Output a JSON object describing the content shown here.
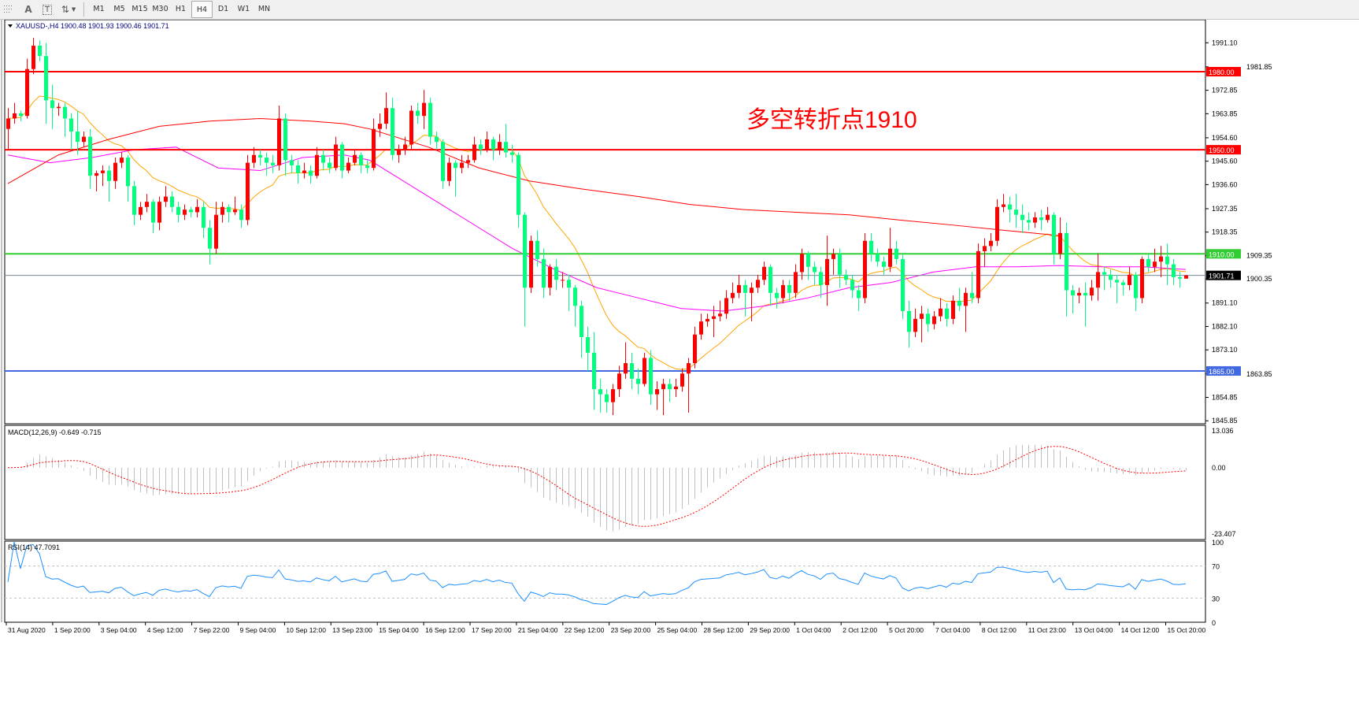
{
  "toolbar": {
    "icons": [
      "grid-icon",
      "text-icon",
      "text-label-icon",
      "arrows-icon"
    ],
    "text_tool": "A",
    "label_tool": "T",
    "timeframes": [
      "M1",
      "M5",
      "M15",
      "M30",
      "H1",
      "H4",
      "D1",
      "W1",
      "MN"
    ],
    "active_timeframe": "H4"
  },
  "main": {
    "header": "XAUUSD-,H4  1900.48 1901.93 1900.46 1901.71",
    "annotation": "多空转折点1910",
    "annotation_color": "#ff0000",
    "price_ticks": [
      "1991.10",
      "1981.85",
      "1972.85",
      "1963.85",
      "1954.60",
      "1945.60",
      "1936.60",
      "1927.35",
      "1918.35",
      "1909.35",
      "1900.35",
      "1891.10",
      "1882.10",
      "1873.10",
      "1863.85",
      "1854.85",
      "1845.85"
    ],
    "levels": [
      {
        "price": 1980.0,
        "label": "1980.00",
        "color": "#ff0000"
      },
      {
        "price": 1950.0,
        "label": "1950.00",
        "color": "#ff0000"
      },
      {
        "price": 1910.0,
        "label": "1910.00",
        "color": "#32cd32"
      },
      {
        "price": 1865.0,
        "label": "1865.00",
        "color": "#4169e1"
      }
    ],
    "current_price": {
      "price": 1901.71,
      "label": "1901.71",
      "color": "#778899"
    }
  },
  "macd": {
    "header": "MACD(12,26,9) -0.649 -0.715",
    "ticks": [
      "13.036",
      "0.00",
      "-23.407"
    ],
    "range": [
      -23.407,
      13.036
    ],
    "histogram_color": "#c0c0c0",
    "signal_color": "#ff0000"
  },
  "rsi": {
    "header": "RSI(14) 47.7091",
    "ticks": [
      "100",
      "70",
      "30",
      "0"
    ],
    "levels": [
      70,
      30
    ],
    "color": "#1e90ff"
  },
  "time_labels": [
    "31 Aug 2020",
    "1 Sep 20:00",
    "3 Sep 04:00",
    "4 Sep 12:00",
    "7 Sep 22:00",
    "9 Sep 04:00",
    "10 Sep 12:00",
    "13 Sep 23:00",
    "15 Sep 04:00",
    "16 Sep 12:00",
    "17 Sep 20:00",
    "21 Sep 04:00",
    "22 Sep 12:00",
    "23 Sep 20:00",
    "25 Sep 04:00",
    "28 Sep 12:00",
    "29 Sep 20:00",
    "1 Oct 04:00",
    "2 Oct 12:00",
    "5 Oct 20:00",
    "7 Oct 04:00",
    "8 Oct 12:00",
    "11 Oct 23:00",
    "13 Oct 04:00",
    "14 Oct 12:00",
    "15 Oct 20:00"
  ],
  "chart_data": {
    "type": "candlestick",
    "symbol": "XAUUSD-",
    "timeframe": "H4",
    "ylim": [
      1845,
      2000
    ],
    "colors": {
      "bull": "#ff0000",
      "bear": "#00ff7f"
    },
    "moving_averages": [
      {
        "color": "#ffa500",
        "computed_from": "close",
        "period": 14
      },
      {
        "color": "#ff00ff",
        "points": [
          [
            0,
            1948
          ],
          [
            10,
            1945
          ],
          [
            20,
            1947
          ],
          [
            30,
            1950
          ],
          [
            40,
            1951
          ],
          [
            50,
            1943
          ],
          [
            60,
            1942
          ],
          [
            70,
            1947
          ],
          [
            80,
            1948
          ],
          [
            86,
            1946
          ],
          [
            100,
            1932
          ],
          [
            110,
            1922
          ],
          [
            120,
            1912
          ],
          [
            130,
            1904
          ],
          [
            140,
            1897
          ],
          [
            150,
            1893
          ],
          [
            160,
            1889
          ],
          [
            170,
            1888
          ],
          [
            180,
            1890
          ],
          [
            190,
            1893
          ],
          [
            200,
            1897
          ],
          [
            210,
            1899
          ],
          [
            220,
            1903
          ],
          [
            230,
            1905
          ],
          [
            240,
            1905
          ],
          [
            250,
            1905.5
          ],
          [
            260,
            1905
          ],
          [
            270,
            1905
          ],
          [
            280,
            1904
          ]
        ]
      },
      {
        "color": "#ff0000",
        "points": [
          [
            0,
            1937
          ],
          [
            12,
            1948
          ],
          [
            24,
            1954
          ],
          [
            36,
            1959
          ],
          [
            48,
            1961
          ],
          [
            60,
            1962
          ],
          [
            72,
            1961
          ],
          [
            80,
            1960
          ],
          [
            86,
            1958
          ],
          [
            100,
            1951
          ],
          [
            112,
            1943
          ],
          [
            124,
            1938
          ],
          [
            136,
            1935
          ],
          [
            150,
            1932
          ],
          [
            162,
            1929
          ],
          [
            175,
            1927
          ],
          [
            187,
            1926
          ],
          [
            200,
            1925
          ],
          [
            212,
            1923
          ],
          [
            225,
            1921
          ],
          [
            237,
            1919
          ],
          [
            250,
            1917
          ]
        ]
      }
    ],
    "ohlc": [
      [
        1958,
        1966,
        1950,
        1962
      ],
      [
        1962,
        1968,
        1960,
        1964
      ],
      [
        1964,
        1965,
        1961,
        1963
      ],
      [
        1963,
        1985,
        1962,
        1981
      ],
      [
        1981,
        1993,
        1979,
        1990
      ],
      [
        1990,
        1992,
        1984,
        1986
      ],
      [
        1986,
        1991,
        1960,
        1969
      ],
      [
        1969,
        1975,
        1958,
        1966
      ],
      [
        1966,
        1968,
        1963,
        1966.5
      ],
      [
        1966.5,
        1968,
        1955,
        1962
      ],
      [
        1962,
        1964,
        1950,
        1957
      ],
      [
        1957,
        1965,
        1948,
        1953
      ],
      [
        1953,
        1957,
        1951,
        1955
      ],
      [
        1955,
        1958,
        1935,
        1940
      ],
      [
        1940,
        1942,
        1934,
        1941
      ],
      [
        1941,
        1944,
        1936,
        1942
      ],
      [
        1942,
        1944,
        1930,
        1938
      ],
      [
        1938,
        1947,
        1935,
        1945
      ],
      [
        1945,
        1949,
        1943,
        1947
      ],
      [
        1947,
        1948,
        1930,
        1936
      ],
      [
        1936,
        1938,
        1921,
        1925
      ],
      [
        1925,
        1930,
        1923,
        1928
      ],
      [
        1928,
        1933,
        1926,
        1930
      ],
      [
        1930,
        1931,
        1918,
        1922
      ],
      [
        1922,
        1932,
        1919,
        1930
      ],
      [
        1930,
        1936,
        1928,
        1932
      ],
      [
        1932,
        1934,
        1926,
        1928
      ],
      [
        1928,
        1930,
        1922,
        1925
      ],
      [
        1925,
        1929,
        1923,
        1927
      ],
      [
        1927,
        1928,
        1924,
        1926
      ],
      [
        1926,
        1931,
        1924,
        1928
      ],
      [
        1928,
        1930,
        1916,
        1920
      ],
      [
        1920,
        1923,
        1906,
        1912
      ],
      [
        1912,
        1930,
        1910,
        1925
      ],
      [
        1925,
        1930,
        1922,
        1928
      ],
      [
        1928,
        1929,
        1922,
        1926
      ],
      [
        1926,
        1932,
        1925,
        1927
      ],
      [
        1927,
        1929,
        1920,
        1923
      ],
      [
        1923,
        1948,
        1921,
        1945
      ],
      [
        1945,
        1951,
        1943,
        1948
      ],
      [
        1948,
        1950,
        1944,
        1947
      ],
      [
        1947,
        1949,
        1940,
        1945
      ],
      [
        1945,
        1948,
        1941,
        1944
      ],
      [
        1944,
        1967,
        1942,
        1962
      ],
      [
        1962,
        1964,
        1940,
        1946
      ],
      [
        1946,
        1948,
        1941,
        1944
      ],
      [
        1944,
        1946,
        1937,
        1941
      ],
      [
        1941,
        1945,
        1939,
        1942
      ],
      [
        1942,
        1944,
        1937,
        1940
      ],
      [
        1940,
        1951,
        1939,
        1948
      ],
      [
        1948,
        1950,
        1942,
        1945
      ],
      [
        1945,
        1947,
        1941,
        1943
      ],
      [
        1943,
        1955,
        1942,
        1952
      ],
      [
        1952,
        1953,
        1939,
        1942
      ],
      [
        1942,
        1947,
        1941,
        1945
      ],
      [
        1945,
        1950,
        1944,
        1948
      ],
      [
        1948,
        1949,
        1941,
        1944
      ],
      [
        1944,
        1946,
        1941,
        1943
      ],
      [
        1943,
        1962,
        1942,
        1958
      ],
      [
        1958,
        1964,
        1955,
        1960
      ],
      [
        1960,
        1972,
        1958,
        1966
      ],
      [
        1966,
        1970,
        1946,
        1948
      ],
      [
        1948,
        1952,
        1945,
        1950
      ],
      [
        1950,
        1955,
        1948,
        1952
      ],
      [
        1952,
        1967,
        1950,
        1965
      ],
      [
        1965,
        1968,
        1960,
        1963
      ],
      [
        1963,
        1973,
        1958,
        1968
      ],
      [
        1968,
        1970,
        1952,
        1955
      ],
      [
        1955,
        1957,
        1950,
        1953
      ],
      [
        1953,
        1954,
        1935,
        1938
      ],
      [
        1938,
        1947,
        1936,
        1945
      ],
      [
        1945,
        1946,
        1932,
        1943
      ],
      [
        1943,
        1948,
        1941,
        1945
      ],
      [
        1945,
        1948,
        1943,
        1946
      ],
      [
        1946,
        1955,
        1945,
        1952
      ],
      [
        1952,
        1954,
        1948,
        1950
      ],
      [
        1950,
        1957,
        1949,
        1954
      ],
      [
        1954,
        1955,
        1946,
        1950
      ],
      [
        1950,
        1956,
        1948,
        1953
      ],
      [
        1953,
        1960,
        1947,
        1949
      ],
      [
        1949,
        1952,
        1945,
        1948
      ],
      [
        1948,
        1949,
        1920,
        1925
      ],
      [
        1925,
        1926,
        1882,
        1897
      ],
      [
        1897,
        1917,
        1895,
        1915
      ],
      [
        1915,
        1919,
        1905,
        1908
      ],
      [
        1908,
        1912,
        1893,
        1897
      ],
      [
        1897,
        1906,
        1894,
        1905
      ],
      [
        1905,
        1908,
        1896,
        1900
      ],
      [
        1900,
        1903,
        1897,
        1900
      ],
      [
        1900,
        1902,
        1888,
        1897
      ],
      [
        1897,
        1898,
        1882,
        1890
      ],
      [
        1890,
        1892,
        1870,
        1878
      ],
      [
        1878,
        1882,
        1865,
        1872
      ],
      [
        1872,
        1880,
        1850,
        1858
      ],
      [
        1858,
        1862,
        1849,
        1856
      ],
      [
        1856,
        1858,
        1849,
        1853
      ],
      [
        1853,
        1860,
        1848,
        1858
      ],
      [
        1858,
        1867,
        1855,
        1864
      ],
      [
        1864,
        1876,
        1862,
        1868
      ],
      [
        1868,
        1872,
        1858,
        1862
      ],
      [
        1862,
        1866,
        1856,
        1860
      ],
      [
        1860,
        1872,
        1859,
        1870
      ],
      [
        1870,
        1873,
        1852,
        1856
      ],
      [
        1856,
        1861,
        1850,
        1858
      ],
      [
        1858,
        1862,
        1848,
        1860
      ],
      [
        1860,
        1862,
        1853,
        1858
      ],
      [
        1858,
        1862,
        1855,
        1859
      ],
      [
        1859,
        1866,
        1857,
        1864
      ],
      [
        1864,
        1870,
        1849,
        1868
      ],
      [
        1868,
        1882,
        1866,
        1879
      ],
      [
        1879,
        1887,
        1877,
        1884
      ],
      [
        1884,
        1887,
        1882,
        1885
      ],
      [
        1885,
        1890,
        1878,
        1886
      ],
      [
        1886,
        1892,
        1884,
        1887
      ],
      [
        1887,
        1896,
        1885,
        1893
      ],
      [
        1893,
        1899,
        1891,
        1895
      ],
      [
        1895,
        1902,
        1893,
        1898
      ],
      [
        1898,
        1900,
        1886,
        1895
      ],
      [
        1895,
        1899,
        1884,
        1897
      ],
      [
        1897,
        1902,
        1895,
        1900
      ],
      [
        1900,
        1907,
        1898,
        1905
      ],
      [
        1905,
        1906,
        1890,
        1895
      ],
      [
        1895,
        1897,
        1889,
        1893
      ],
      [
        1893,
        1900,
        1891,
        1898
      ],
      [
        1898,
        1900,
        1892,
        1895
      ],
      [
        1895,
        1906,
        1893,
        1903
      ],
      [
        1903,
        1912,
        1900,
        1910
      ],
      [
        1910,
        1911,
        1900,
        1905
      ],
      [
        1905,
        1907,
        1898,
        1903
      ],
      [
        1903,
        1905,
        1893,
        1898
      ],
      [
        1898,
        1917,
        1890,
        1908
      ],
      [
        1908,
        1912,
        1902,
        1910
      ],
      [
        1910,
        1912,
        1897,
        1902
      ],
      [
        1902,
        1904,
        1898,
        1900
      ],
      [
        1900,
        1902,
        1893,
        1896
      ],
      [
        1896,
        1898,
        1888,
        1893
      ],
      [
        1893,
        1918,
        1891,
        1915
      ],
      [
        1915,
        1918,
        1907,
        1910
      ],
      [
        1910,
        1912,
        1905,
        1907
      ],
      [
        1907,
        1909,
        1902,
        1905
      ],
      [
        1905,
        1920,
        1903,
        1912
      ],
      [
        1912,
        1915,
        1906,
        1908
      ],
      [
        1908,
        1910,
        1885,
        1888
      ],
      [
        1888,
        1892,
        1874,
        1880
      ],
      [
        1880,
        1889,
        1878,
        1885
      ],
      [
        1885,
        1890,
        1876,
        1887
      ],
      [
        1887,
        1889,
        1880,
        1883
      ],
      [
        1883,
        1888,
        1881,
        1886
      ],
      [
        1886,
        1893,
        1884,
        1889
      ],
      [
        1889,
        1891,
        1882,
        1885
      ],
      [
        1885,
        1894,
        1883,
        1892
      ],
      [
        1892,
        1897,
        1888,
        1890
      ],
      [
        1890,
        1897,
        1880,
        1895
      ],
      [
        1895,
        1903,
        1891,
        1893
      ],
      [
        1893,
        1914,
        1891,
        1911
      ],
      [
        1911,
        1916,
        1905,
        1913
      ],
      [
        1913,
        1918,
        1911,
        1915
      ],
      [
        1915,
        1931,
        1913,
        1928
      ],
      [
        1928,
        1933,
        1926,
        1929
      ],
      [
        1929,
        1932,
        1922,
        1927
      ],
      [
        1927,
        1933,
        1920,
        1925
      ],
      [
        1925,
        1929,
        1918,
        1923
      ],
      [
        1923,
        1926,
        1919,
        1922
      ],
      [
        1922,
        1926,
        1920,
        1924
      ],
      [
        1924,
        1927,
        1919,
        1923
      ],
      [
        1923,
        1928,
        1922,
        1925
      ],
      [
        1925,
        1926,
        1906,
        1910
      ],
      [
        1910,
        1924,
        1908,
        1918
      ],
      [
        1918,
        1922,
        1886,
        1896
      ],
      [
        1896,
        1898,
        1887,
        1894
      ],
      [
        1894,
        1897,
        1891,
        1895
      ],
      [
        1895,
        1899,
        1882,
        1894
      ],
      [
        1894,
        1900,
        1892,
        1897
      ],
      [
        1897,
        1910,
        1892,
        1903
      ],
      [
        1903,
        1905,
        1896,
        1902
      ],
      [
        1902,
        1904,
        1897,
        1900
      ],
      [
        1900,
        1902,
        1891,
        1899
      ],
      [
        1899,
        1900,
        1894,
        1898
      ],
      [
        1898,
        1905,
        1896,
        1902
      ],
      [
        1902,
        1903,
        1888,
        1893
      ],
      [
        1893,
        1909,
        1891,
        1908
      ],
      [
        1908,
        1910,
        1903,
        1905
      ],
      [
        1905,
        1912,
        1903,
        1907
      ],
      [
        1907,
        1913,
        1901,
        1909
      ],
      [
        1909,
        1914,
        1898,
        1906
      ],
      [
        1906,
        1908,
        1898,
        1901
      ],
      [
        1901,
        1903,
        1897,
        1900.48
      ],
      [
        1900.48,
        1901.93,
        1900.46,
        1901.71
      ]
    ]
  }
}
